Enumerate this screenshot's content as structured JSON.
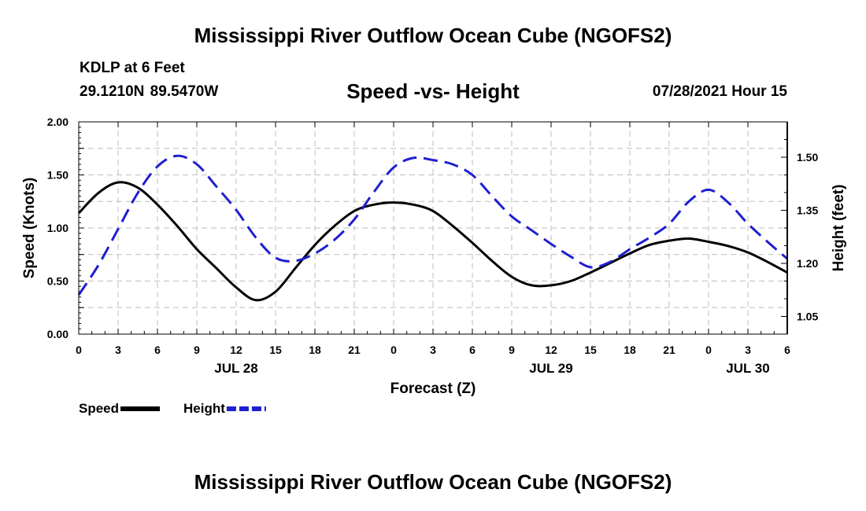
{
  "header": {
    "title": "Mississippi River Outflow Ocean Cube (NGOFS2)",
    "station": "KDLP at 6 Feet",
    "coords": "29.1210N  89.5470W",
    "subtitle": "Speed -vs- Height",
    "datetime": "07/28/2021 Hour 15"
  },
  "footer": {
    "title": "Mississippi River Outflow Ocean Cube (NGOFS2)"
  },
  "chart_data": {
    "type": "line",
    "title": "Speed -vs- Height",
    "xlabel": "Forecast (Z)",
    "ylabel": "Speed (Knots)",
    "y2label": "Height (feet)",
    "x_range_hours": [
      0,
      54
    ],
    "ylim": [
      0,
      2
    ],
    "y2lim": [
      1.0,
      1.6
    ],
    "x_ticks": [
      {
        "h": 0,
        "label": "0"
      },
      {
        "h": 3,
        "label": "3"
      },
      {
        "h": 6,
        "label": "6"
      },
      {
        "h": 9,
        "label": "9"
      },
      {
        "h": 12,
        "label": "12"
      },
      {
        "h": 15,
        "label": "15"
      },
      {
        "h": 18,
        "label": "18"
      },
      {
        "h": 21,
        "label": "21"
      },
      {
        "h": 24,
        "label": "0"
      },
      {
        "h": 27,
        "label": "3"
      },
      {
        "h": 30,
        "label": "6"
      },
      {
        "h": 33,
        "label": "9"
      },
      {
        "h": 36,
        "label": "12"
      },
      {
        "h": 39,
        "label": "15"
      },
      {
        "h": 42,
        "label": "18"
      },
      {
        "h": 45,
        "label": "21"
      },
      {
        "h": 48,
        "label": "0"
      },
      {
        "h": 51,
        "label": "3"
      },
      {
        "h": 54,
        "label": "6"
      }
    ],
    "date_labels": [
      {
        "h": 12,
        "label": "JUL 28"
      },
      {
        "h": 36,
        "label": "JUL 29"
      },
      {
        "h": 51,
        "label": "JUL 30"
      }
    ],
    "y_ticks": [
      {
        "v": 0,
        "label": "0.00"
      },
      {
        "v": 0.5,
        "label": "0.50"
      },
      {
        "v": 1.0,
        "label": "1.00"
      },
      {
        "v": 1.5,
        "label": "1.50"
      },
      {
        "v": 2.0,
        "label": "2.00"
      }
    ],
    "y2_ticks": [
      {
        "v": 1.05,
        "label": "1.05"
      },
      {
        "v": 1.2,
        "label": "1.20"
      },
      {
        "v": 1.35,
        "label": "1.35"
      },
      {
        "v": 1.5,
        "label": "1.50"
      }
    ],
    "series": [
      {
        "name": "Speed",
        "axis": "left",
        "color": "#000000",
        "dash": "solid",
        "points": [
          [
            0,
            1.14
          ],
          [
            1.5,
            1.33
          ],
          [
            3,
            1.43
          ],
          [
            4.5,
            1.38
          ],
          [
            6,
            1.22
          ],
          [
            7.5,
            1.02
          ],
          [
            9,
            0.8
          ],
          [
            10.5,
            0.62
          ],
          [
            12,
            0.44
          ],
          [
            13.5,
            0.32
          ],
          [
            15,
            0.4
          ],
          [
            16.5,
            0.62
          ],
          [
            18,
            0.84
          ],
          [
            19.5,
            1.02
          ],
          [
            21,
            1.16
          ],
          [
            22.5,
            1.22
          ],
          [
            24,
            1.24
          ],
          [
            25.5,
            1.22
          ],
          [
            27,
            1.16
          ],
          [
            28.5,
            1.02
          ],
          [
            30,
            0.86
          ],
          [
            31.5,
            0.69
          ],
          [
            33,
            0.54
          ],
          [
            34.5,
            0.46
          ],
          [
            36,
            0.46
          ],
          [
            37.5,
            0.5
          ],
          [
            39,
            0.58
          ],
          [
            40.5,
            0.67
          ],
          [
            42,
            0.76
          ],
          [
            43.5,
            0.84
          ],
          [
            45,
            0.88
          ],
          [
            46.5,
            0.9
          ],
          [
            48,
            0.87
          ],
          [
            49.5,
            0.83
          ],
          [
            51,
            0.77
          ],
          [
            52.5,
            0.68
          ],
          [
            54,
            0.58
          ]
        ]
      },
      {
        "name": "Height",
        "axis": "right",
        "color": "#1f1fd0",
        "dash": "dashed",
        "points": [
          [
            0,
            1.111
          ],
          [
            1.5,
            1.195
          ],
          [
            3,
            1.297
          ],
          [
            4.5,
            1.399
          ],
          [
            6,
            1.474
          ],
          [
            7.5,
            1.504
          ],
          [
            9,
            1.48
          ],
          [
            10.5,
            1.417
          ],
          [
            12,
            1.351
          ],
          [
            13.5,
            1.273
          ],
          [
            15,
            1.216
          ],
          [
            16.5,
            1.207
          ],
          [
            18,
            1.228
          ],
          [
            19.5,
            1.267
          ],
          [
            21,
            1.324
          ],
          [
            22.5,
            1.402
          ],
          [
            24,
            1.471
          ],
          [
            25.5,
            1.498
          ],
          [
            27,
            1.492
          ],
          [
            28.5,
            1.48
          ],
          [
            30,
            1.45
          ],
          [
            31.5,
            1.39
          ],
          [
            33,
            1.333
          ],
          [
            34.5,
            1.294
          ],
          [
            36,
            1.255
          ],
          [
            37.5,
            1.219
          ],
          [
            39,
            1.189
          ],
          [
            40.5,
            1.204
          ],
          [
            42,
            1.24
          ],
          [
            43.5,
            1.273
          ],
          [
            45,
            1.312
          ],
          [
            46.5,
            1.375
          ],
          [
            48,
            1.408
          ],
          [
            49.5,
            1.372
          ],
          [
            51,
            1.312
          ],
          [
            52.5,
            1.261
          ],
          [
            54,
            1.213
          ]
        ]
      }
    ],
    "legend": [
      {
        "label": "Speed",
        "color": "#000000",
        "dash": "solid"
      },
      {
        "label": "Height",
        "color": "#1f1fd0",
        "dash": "dashed"
      }
    ]
  }
}
